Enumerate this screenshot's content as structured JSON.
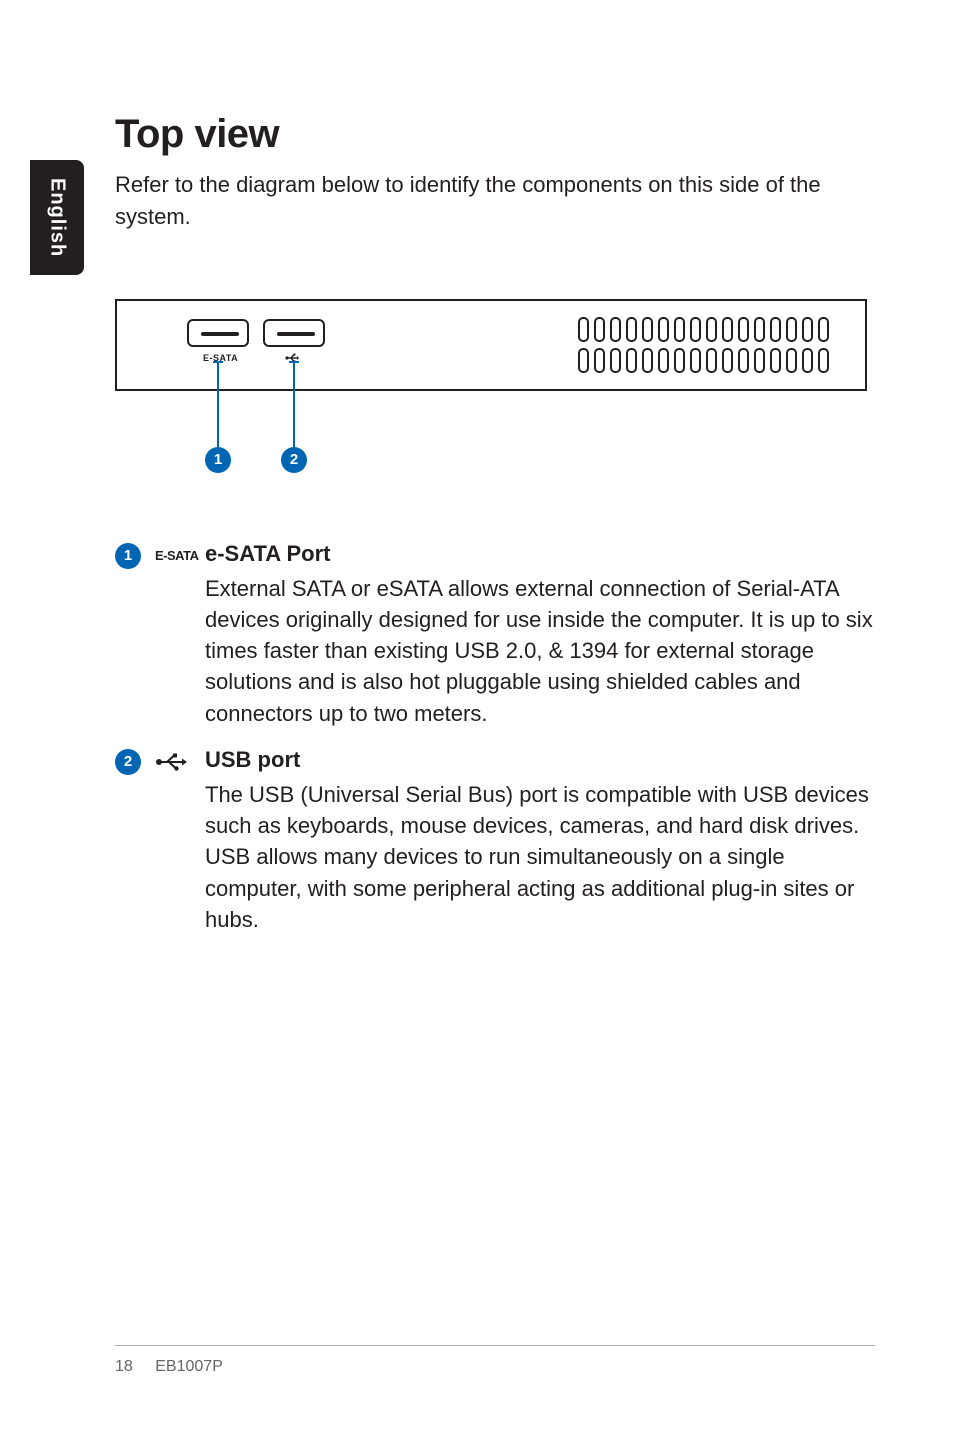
{
  "sideTab": "English",
  "heading": "Top view",
  "intro": "Refer to the diagram below to identify the components on this side of the system.",
  "diagram": {
    "port1_label": "E-SATA",
    "port2_label": "⇠",
    "callout1": "1",
    "callout2": "2",
    "vent_cols": 16,
    "vent_rows": 2
  },
  "items": [
    {
      "num": "1",
      "icon": "E-SATA",
      "title": "e-SATA Port",
      "text": "External SATA or eSATA allows external connection of Serial-ATA devices originally designed for use inside the computer. It is up to six times faster than existing USB 2.0, & 1394 for external storage solutions and is also hot pluggable using shielded cables and connectors up to two meters."
    },
    {
      "num": "2",
      "icon": "usb",
      "title": "USB port",
      "text": "The USB (Universal Serial Bus) port is compatible with USB devices such as keyboards, mouse devices, cameras, and hard disk drives. USB allows many devices to run simultaneously on a single computer, with some peripheral acting as additional plug-in sites or hubs."
    }
  ],
  "footer": {
    "page": "18",
    "model": "EB1007P"
  },
  "colors": {
    "accent": "#0066b3",
    "text": "#231f20",
    "bg": "#ffffff"
  }
}
